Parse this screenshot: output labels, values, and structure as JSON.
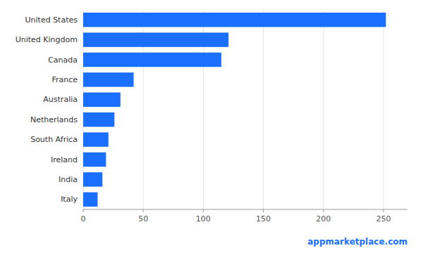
{
  "chart_data": {
    "type": "bar",
    "orientation": "horizontal",
    "categories": [
      "United States",
      "United Kingdom",
      "Canada",
      "France",
      "Australia",
      "Netherlands",
      "South Africa",
      "Ireland",
      "India",
      "Italy"
    ],
    "values": [
      252,
      121,
      115,
      42,
      31,
      26,
      21,
      19,
      16,
      12
    ],
    "color": "#1a6fff",
    "xlim": [
      0,
      270
    ],
    "xticks": [
      0,
      50,
      100,
      150,
      200,
      250
    ],
    "grid": true,
    "annotations": [
      "appmarketplace.com"
    ]
  }
}
